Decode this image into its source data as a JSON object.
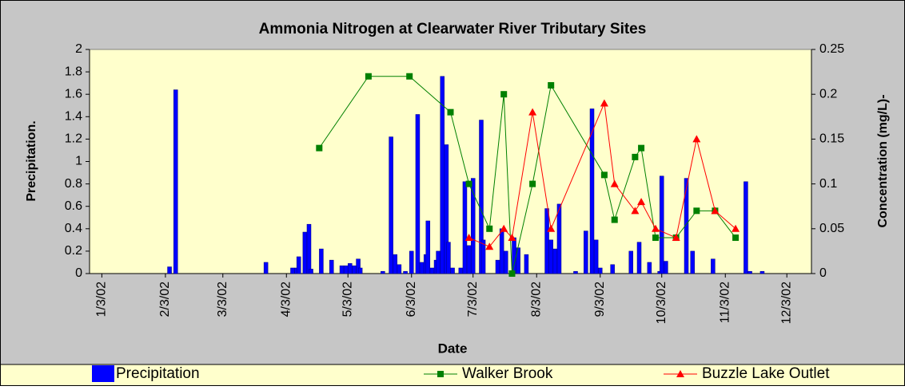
{
  "chart_data": {
    "type": "combo",
    "title": "Ammonia Nitrogen at Clearwater River Tributary Sites",
    "xlabel": "Date",
    "ylabel": "Precipitation.",
    "y2label": "Concentration (mg/L)-",
    "xlim": [
      "2001-12-28",
      "2002-12-15"
    ],
    "xticks": [
      {
        "value": "2002-01-03",
        "label": "1/3/02"
      },
      {
        "value": "2002-02-03",
        "label": "2/3/02"
      },
      {
        "value": "2002-03-03",
        "label": "3/3/02"
      },
      {
        "value": "2002-04-03",
        "label": "4/3/02"
      },
      {
        "value": "2002-05-03",
        "label": "5/3/02"
      },
      {
        "value": "2002-06-03",
        "label": "6/3/02"
      },
      {
        "value": "2002-07-03",
        "label": "7/3/02"
      },
      {
        "value": "2002-08-03",
        "label": "8/3/02"
      },
      {
        "value": "2002-09-03",
        "label": "9/3/02"
      },
      {
        "value": "2002-10-03",
        "label": "10/3/02"
      },
      {
        "value": "2002-11-03",
        "label": "11/3/02"
      },
      {
        "value": "2002-12-03",
        "label": "12/3/02"
      }
    ],
    "ylim": [
      0,
      2
    ],
    "yticks": [
      0,
      0.2,
      0.4,
      0.6,
      0.8,
      1,
      1.2,
      1.4,
      1.6,
      1.8,
      2
    ],
    "y2lim": [
      0,
      0.25
    ],
    "y2ticks": [
      0,
      0.05,
      0.1,
      0.15,
      0.2,
      0.25
    ],
    "legend": "bottom",
    "series": [
      {
        "name": "Precipitation",
        "type": "bar",
        "color": "#0000ff",
        "x": [
          "2002-02-05",
          "2002-02-08",
          "2002-03-24",
          "2002-04-06",
          "2002-04-08",
          "2002-04-09",
          "2002-04-12",
          "2002-04-14",
          "2002-04-15",
          "2002-04-20",
          "2002-04-25",
          "2002-04-30",
          "2002-05-02",
          "2002-05-04",
          "2002-05-06",
          "2002-05-08",
          "2002-05-09",
          "2002-05-20",
          "2002-05-24",
          "2002-05-26",
          "2002-05-28",
          "2002-05-31",
          "2002-06-03",
          "2002-06-06",
          "2002-06-08",
          "2002-06-10",
          "2002-06-11",
          "2002-06-13",
          "2002-06-15",
          "2002-06-16",
          "2002-06-18",
          "2002-06-20",
          "2002-06-21",
          "2002-06-23",
          "2002-06-27",
          "2002-06-29",
          "2002-07-01",
          "2002-07-03",
          "2002-07-07",
          "2002-07-08",
          "2002-07-15",
          "2002-07-17",
          "2002-07-19",
          "2002-07-23",
          "2002-07-25",
          "2002-07-29",
          "2002-08-08",
          "2002-08-10",
          "2002-08-12",
          "2002-08-14",
          "2002-08-22",
          "2002-08-27",
          "2002-08-30",
          "2002-09-01",
          "2002-09-03",
          "2002-09-09",
          "2002-09-18",
          "2002-09-22",
          "2002-09-27",
          "2002-10-02",
          "2002-10-03",
          "2002-10-05",
          "2002-10-15",
          "2002-10-18",
          "2002-10-28",
          "2002-11-13",
          "2002-11-15",
          "2002-11-21"
        ],
        "values": [
          0.06,
          1.64,
          0.1,
          0.05,
          0.05,
          0.15,
          0.37,
          0.44,
          0.04,
          0.22,
          0.12,
          0.07,
          0.07,
          0.09,
          0.07,
          0.13,
          0.05,
          0.02,
          1.22,
          0.17,
          0.08,
          0.02,
          0.2,
          1.42,
          0.1,
          0.17,
          0.47,
          0.05,
          0.12,
          0.2,
          1.76,
          1.15,
          0.28,
          0.05,
          0.05,
          0.82,
          0.25,
          0.85,
          1.37,
          0.3,
          0.12,
          0.4,
          0.2,
          0.32,
          0.23,
          0.17,
          0.58,
          0.3,
          0.22,
          0.62,
          0.02,
          0.38,
          1.47,
          0.3,
          0.05,
          0.08,
          0.2,
          0.28,
          0.1,
          0.02,
          0.87,
          0.11,
          0.85,
          0.2,
          0.13,
          0.82,
          0.02,
          0.02
        ]
      },
      {
        "name": "Walker Brook",
        "type": "line",
        "axis": "y2",
        "color": "#008000",
        "marker": "square",
        "x": [
          "2002-04-19",
          "2002-05-13",
          "2002-06-02",
          "2002-06-22",
          "2002-07-01",
          "2002-07-11",
          "2002-07-18",
          "2002-07-22",
          "2002-08-01",
          "2002-08-10",
          "2002-09-05",
          "2002-09-10",
          "2002-09-20",
          "2002-09-23",
          "2002-09-30",
          "2002-10-10",
          "2002-10-20",
          "2002-10-29",
          "2002-11-08"
        ],
        "values": [
          0.14,
          0.22,
          0.22,
          0.18,
          0.1,
          0.05,
          0.2,
          0,
          0.1,
          0.21,
          0.11,
          0.06,
          0.13,
          0.14,
          0.04,
          0.04,
          0.07,
          0.07,
          0.04
        ]
      },
      {
        "name": "Buzzle Lake Outlet",
        "type": "line",
        "axis": "y2",
        "color": "#ff0000",
        "marker": "triangle",
        "x": [
          "2002-07-01",
          "2002-07-11",
          "2002-07-18",
          "2002-07-22",
          "2002-08-01",
          "2002-08-10",
          "2002-09-05",
          "2002-09-10",
          "2002-09-20",
          "2002-09-23",
          "2002-09-30",
          "2002-10-10",
          "2002-10-20",
          "2002-10-29",
          "2002-11-08"
        ],
        "values": [
          0.04,
          0.03,
          0.05,
          0.04,
          0.18,
          0.05,
          0.19,
          0.1,
          0.07,
          0.08,
          0.05,
          0.04,
          0.15,
          0.07,
          0.05
        ]
      }
    ]
  }
}
